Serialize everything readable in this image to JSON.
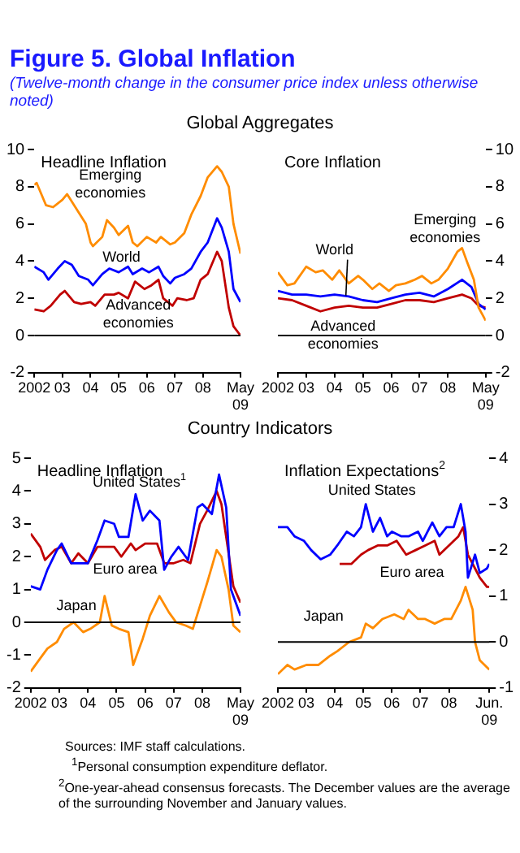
{
  "chart_data": [
    {
      "type": "other",
      "title": "Figure 5.  Global Inflation",
      "subtitle": "(Twelve-month change in the consumer price index unless otherwise noted)"
    },
    {
      "type": "other",
      "title": "Global Aggregates"
    },
    {
      "type": "line",
      "title": "Headline Inflation",
      "xlim": [
        "2002-01",
        "2009-05"
      ],
      "xticks": [
        {
          "value": "2002",
          "label": "2002"
        },
        {
          "value": "2003",
          "label": "03"
        },
        {
          "value": "2004",
          "label": "04"
        },
        {
          "value": "2005",
          "label": "05"
        },
        {
          "value": "2006",
          "label": "06"
        },
        {
          "value": "2007",
          "label": "07"
        },
        {
          "value": "2008",
          "label": "08"
        },
        {
          "value": "2009-05",
          "label": "May 09"
        }
      ],
      "ylim": [
        -2,
        10
      ],
      "yticks": [
        -2,
        0,
        2,
        4,
        6,
        8,
        10
      ],
      "ref_lines": [
        {
          "axis": "y",
          "value": 0,
          "color": "#000000"
        }
      ],
      "series": [
        {
          "name": "Emerging economies",
          "color": "#ff8c00",
          "x": [
            "2002-01",
            "2002-02",
            "2002-06",
            "2002-09",
            "2003-01",
            "2003-03",
            "2003-07",
            "2003-11",
            "2004-01",
            "2004-02",
            "2004-06",
            "2004-08",
            "2004-11",
            "2005-01",
            "2005-05",
            "2005-07",
            "2005-09",
            "2006-01",
            "2006-05",
            "2006-07",
            "2006-11",
            "2007-01",
            "2007-05",
            "2007-08",
            "2007-12",
            "2008-03",
            "2008-07",
            "2008-09",
            "2008-12",
            "2009-02",
            "2009-05"
          ],
          "values": [
            8.1,
            8.2,
            7,
            6.9,
            7.3,
            7.6,
            6.8,
            6,
            5,
            4.8,
            5.3,
            6.2,
            5.8,
            5.4,
            5.9,
            5,
            4.8,
            5.3,
            5,
            5.3,
            4.9,
            5,
            5.5,
            6.5,
            7.5,
            8.5,
            9.1,
            8.8,
            8,
            6,
            4.4
          ]
        },
        {
          "name": "World",
          "color": "#0000ff",
          "x": [
            "2002-01",
            "2002-05",
            "2002-07",
            "2002-11",
            "2003-02",
            "2003-05",
            "2003-08",
            "2003-12",
            "2004-02",
            "2004-06",
            "2004-09",
            "2005-01",
            "2005-05",
            "2005-07",
            "2005-11",
            "2006-02",
            "2006-06",
            "2006-08",
            "2006-11",
            "2007-01",
            "2007-05",
            "2007-08",
            "2007-12",
            "2008-03",
            "2008-07",
            "2008-09",
            "2008-12",
            "2009-02",
            "2009-05"
          ],
          "values": [
            3.7,
            3.4,
            3,
            3.6,
            4,
            3.8,
            3.2,
            3,
            2.7,
            3.3,
            3.6,
            3.4,
            3.7,
            3.3,
            3.6,
            3.4,
            3.7,
            3.2,
            2.8,
            3.1,
            3.3,
            3.6,
            4.5,
            5,
            6.3,
            5.8,
            4.5,
            2.5,
            1.8
          ]
        },
        {
          "name": "Advanced economies",
          "color": "#c00000",
          "x": [
            "2002-01",
            "2002-05",
            "2002-08",
            "2002-12",
            "2003-02",
            "2003-06",
            "2003-09",
            "2004-01",
            "2004-03",
            "2004-07",
            "2004-11",
            "2005-01",
            "2005-05",
            "2005-08",
            "2005-12",
            "2006-03",
            "2006-06",
            "2006-08",
            "2006-12",
            "2007-02",
            "2007-06",
            "2007-09",
            "2007-12",
            "2008-03",
            "2008-07",
            "2008-09",
            "2008-12",
            "2009-02",
            "2009-05"
          ],
          "values": [
            1.4,
            1.3,
            1.6,
            2.2,
            2.4,
            1.8,
            1.7,
            1.8,
            1.6,
            2.2,
            2.2,
            2.3,
            2,
            2.9,
            2.5,
            2.7,
            3,
            2,
            1.6,
            2,
            1.9,
            2,
            3,
            3.3,
            4.5,
            4,
            1.5,
            0.5,
            0
          ]
        }
      ]
    },
    {
      "type": "line",
      "title": "Core Inflation",
      "xlim": [
        "2002-01",
        "2009-05"
      ],
      "xticks": [
        {
          "value": "2002",
          "label": "2002"
        },
        {
          "value": "2003",
          "label": "03"
        },
        {
          "value": "2004",
          "label": "04"
        },
        {
          "value": "2005",
          "label": "05"
        },
        {
          "value": "2006",
          "label": "06"
        },
        {
          "value": "2007",
          "label": "07"
        },
        {
          "value": "2008",
          "label": "08"
        },
        {
          "value": "2009-05",
          "label": "May 09"
        }
      ],
      "ylim": [
        -2,
        10
      ],
      "yticks": [
        -2,
        0,
        2,
        4,
        6,
        8,
        10
      ],
      "ref_lines": [
        {
          "axis": "y",
          "value": 0,
          "color": "#000000"
        }
      ],
      "series": [
        {
          "name": "Emerging economies",
          "color": "#ff8c00",
          "x": [
            "2002-01",
            "2002-05",
            "2002-08",
            "2003-01",
            "2003-05",
            "2003-08",
            "2003-12",
            "2004-03",
            "2004-07",
            "2004-11",
            "2005-01",
            "2005-05",
            "2005-08",
            "2005-12",
            "2006-03",
            "2006-07",
            "2006-11",
            "2007-02",
            "2007-06",
            "2007-09",
            "2008-01",
            "2008-05",
            "2008-07",
            "2008-09",
            "2008-12",
            "2009-02",
            "2009-05"
          ],
          "values": [
            3.4,
            2.7,
            2.8,
            3.7,
            3.4,
            3.5,
            3,
            3.5,
            2.8,
            3.2,
            3,
            2.5,
            2.8,
            2.4,
            2.7,
            2.8,
            3,
            3.2,
            2.8,
            3,
            3.6,
            4.5,
            4.7,
            4,
            3,
            1.5,
            0.8
          ]
        },
        {
          "name": "World",
          "color": "#0000ff",
          "x": [
            "2002-01",
            "2002-07",
            "2003-01",
            "2003-07",
            "2004-01",
            "2004-07",
            "2005-01",
            "2005-07",
            "2006-01",
            "2006-07",
            "2007-01",
            "2007-07",
            "2008-01",
            "2008-07",
            "2008-11",
            "2009-02",
            "2009-05"
          ],
          "values": [
            2.4,
            2.2,
            2.2,
            2.1,
            2.2,
            2.1,
            1.9,
            1.8,
            2,
            2.2,
            2.3,
            2.1,
            2.5,
            3,
            2.6,
            1.7,
            1.4
          ]
        },
        {
          "name": "Advanced economies",
          "color": "#c00000",
          "x": [
            "2002-01",
            "2002-07",
            "2003-01",
            "2003-07",
            "2004-01",
            "2004-07",
            "2005-01",
            "2005-07",
            "2006-01",
            "2006-07",
            "2007-01",
            "2007-07",
            "2008-01",
            "2008-07",
            "2008-11",
            "2009-02",
            "2009-05"
          ],
          "values": [
            2,
            1.9,
            1.6,
            1.3,
            1.5,
            1.6,
            1.5,
            1.5,
            1.7,
            1.9,
            1.9,
            1.8,
            2,
            2.2,
            2,
            1.6,
            1.5
          ]
        }
      ]
    },
    {
      "type": "other",
      "title": "Country Indicators"
    },
    {
      "type": "line",
      "title": "Headline Inflation",
      "xlim": [
        "2002-01",
        "2009-05"
      ],
      "xticks": [
        {
          "value": "2002",
          "label": "2002"
        },
        {
          "value": "2003",
          "label": "03"
        },
        {
          "value": "2004",
          "label": "04"
        },
        {
          "value": "2005",
          "label": "05"
        },
        {
          "value": "2006",
          "label": "06"
        },
        {
          "value": "2007",
          "label": "07"
        },
        {
          "value": "2008",
          "label": "08"
        },
        {
          "value": "2009-05",
          "label": "May 09"
        }
      ],
      "ylim": [
        -2,
        5
      ],
      "yticks": [
        -2,
        -1,
        0,
        1,
        2,
        3,
        4,
        5
      ],
      "ref_lines": [
        {
          "axis": "y",
          "value": 0,
          "color": "#000000"
        }
      ],
      "series": [
        {
          "name": "United States$^{1}$",
          "color": "#0000ff",
          "x": [
            "2002-01",
            "2002-05",
            "2002-08",
            "2002-12",
            "2003-02",
            "2003-06",
            "2003-09",
            "2004-01",
            "2004-05",
            "2004-08",
            "2004-12",
            "2005-02",
            "2005-06",
            "2005-09",
            "2005-12",
            "2006-03",
            "2006-07",
            "2006-09",
            "2006-12",
            "2007-03",
            "2007-07",
            "2007-11",
            "2008-01",
            "2008-05",
            "2008-08",
            "2008-11",
            "2009-01",
            "2009-03",
            "2009-05"
          ],
          "values": [
            1.1,
            1,
            1.6,
            2.2,
            2.4,
            1.8,
            1.8,
            1.8,
            2.5,
            3.1,
            3,
            2.6,
            2.6,
            3.9,
            3.1,
            3.4,
            3.1,
            1.6,
            2,
            2.3,
            1.9,
            3.5,
            3.6,
            3.3,
            4.5,
            3.5,
            1,
            0.6,
            0.2
          ]
        },
        {
          "name": "Euro area",
          "color": "#c00000",
          "x": [
            "2002-01",
            "2002-05",
            "2002-07",
            "2002-11",
            "2003-02",
            "2003-06",
            "2003-09",
            "2004-01",
            "2004-05",
            "2004-08",
            "2004-12",
            "2005-03",
            "2005-07",
            "2005-09",
            "2006-01",
            "2006-06",
            "2006-09",
            "2007-01",
            "2007-05",
            "2007-08",
            "2007-12",
            "2008-03",
            "2008-07",
            "2008-09",
            "2008-12",
            "2009-02",
            "2009-05"
          ],
          "values": [
            2.7,
            2.3,
            1.9,
            2.2,
            2.3,
            1.8,
            2.1,
            1.8,
            2.3,
            2.3,
            2.3,
            2,
            2.4,
            2.2,
            2.4,
            2.4,
            1.8,
            1.8,
            1.9,
            1.8,
            3,
            3.4,
            4,
            3.6,
            2.1,
            1.1,
            0.6
          ]
        },
        {
          "name": "Japan",
          "color": "#ff8c00",
          "x": [
            "2002-01",
            "2002-05",
            "2002-08",
            "2002-12",
            "2003-03",
            "2003-07",
            "2003-11",
            "2004-02",
            "2004-06",
            "2004-08",
            "2004-11",
            "2005-02",
            "2005-06",
            "2005-08",
            "2005-12",
            "2006-03",
            "2006-07",
            "2006-11",
            "2007-02",
            "2007-06",
            "2007-09",
            "2007-12",
            "2008-03",
            "2008-07",
            "2008-09",
            "2008-12",
            "2009-02",
            "2009-05"
          ],
          "values": [
            -1.5,
            -1.1,
            -0.8,
            -0.6,
            -0.2,
            0,
            -0.3,
            -0.2,
            0,
            0.8,
            -0.1,
            -0.2,
            -0.3,
            -1.3,
            -0.5,
            0.2,
            0.8,
            0.3,
            0,
            -0.1,
            -0.2,
            0.5,
            1.2,
            2.2,
            2,
            1,
            -0.1,
            -0.3
          ]
        }
      ]
    },
    {
      "type": "line",
      "title": "Inflation Expectations$^{2}$",
      "xlim": [
        "2002-01",
        "2009-06"
      ],
      "xticks": [
        {
          "value": "2002",
          "label": "2002"
        },
        {
          "value": "2003",
          "label": "03"
        },
        {
          "value": "2004",
          "label": "04"
        },
        {
          "value": "2005",
          "label": "05"
        },
        {
          "value": "2006",
          "label": "06"
        },
        {
          "value": "2007",
          "label": "07"
        },
        {
          "value": "2008",
          "label": "08"
        },
        {
          "value": "2009-06",
          "label": "Jun. 09"
        }
      ],
      "ylim": [
        -1,
        4
      ],
      "yticks": [
        -1,
        0,
        1,
        2,
        3,
        4
      ],
      "ref_lines": [
        {
          "axis": "y",
          "value": 0,
          "color": "#000000"
        }
      ],
      "series": [
        {
          "name": "United States",
          "color": "#0000ff",
          "x": [
            "2002-01",
            "2002-05",
            "2002-08",
            "2002-12",
            "2003-03",
            "2003-07",
            "2003-11",
            "2004-02",
            "2004-06",
            "2004-09",
            "2004-12",
            "2005-02",
            "2005-05",
            "2005-08",
            "2005-11",
            "2006-01",
            "2006-05",
            "2006-08",
            "2006-12",
            "2007-02",
            "2007-06",
            "2007-09",
            "2007-12",
            "2008-03",
            "2008-06",
            "2008-08",
            "2008-09",
            "2008-12",
            "2009-02",
            "2009-05",
            "2009-06"
          ],
          "values": [
            2.5,
            2.5,
            2.3,
            2.2,
            2,
            1.8,
            1.9,
            2.1,
            2.4,
            2.3,
            2.5,
            3,
            2.4,
            2.7,
            2.3,
            2.4,
            2.3,
            2.3,
            2.4,
            2.2,
            2.6,
            2.3,
            2.5,
            2.5,
            3,
            2.4,
            1.4,
            1.9,
            1.5,
            1.6,
            1.7
          ]
        },
        {
          "name": "Euro area",
          "color": "#c00000",
          "x": [
            "2004-03",
            "2004-08",
            "2004-12",
            "2005-03",
            "2005-07",
            "2005-11",
            "2006-03",
            "2006-07",
            "2006-11",
            "2007-03",
            "2007-07",
            "2007-09",
            "2008-01",
            "2008-05",
            "2008-07",
            "2008-09",
            "2008-12",
            "2009-02",
            "2009-05",
            "2009-06"
          ],
          "values": [
            1.7,
            1.7,
            1.9,
            2,
            2.1,
            2.1,
            2.2,
            1.9,
            2,
            2.1,
            2.2,
            1.9,
            2.1,
            2.3,
            2.5,
            1.9,
            1.6,
            1.4,
            1.2,
            1.2
          ]
        },
        {
          "name": "Japan",
          "color": "#ff8c00",
          "x": [
            "2002-01",
            "2002-05",
            "2002-08",
            "2003-01",
            "2003-06",
            "2003-11",
            "2004-02",
            "2004-07",
            "2004-12",
            "2005-02",
            "2005-05",
            "2005-09",
            "2006-02",
            "2006-06",
            "2006-08",
            "2006-12",
            "2007-03",
            "2007-07",
            "2007-11",
            "2008-02",
            "2008-06",
            "2008-08",
            "2008-11",
            "2008-12",
            "2009-02",
            "2009-06"
          ],
          "values": [
            -0.7,
            -0.5,
            -0.6,
            -0.5,
            -0.5,
            -0.3,
            -0.2,
            0,
            0.1,
            0.4,
            0.3,
            0.5,
            0.6,
            0.5,
            0.7,
            0.5,
            0.5,
            0.4,
            0.5,
            0.5,
            0.9,
            1.2,
            0.7,
            0,
            -0.4,
            -0.6
          ]
        }
      ]
    },
    {
      "type": "other",
      "annotations": [
        "Sources: IMF staff calculations.",
        "$^{1}$Personal consumption expenditure deflator.",
        "$^{2}$One-year-ahead consensus forecasts. The December values are the average of the surrounding November and January values."
      ]
    }
  ]
}
